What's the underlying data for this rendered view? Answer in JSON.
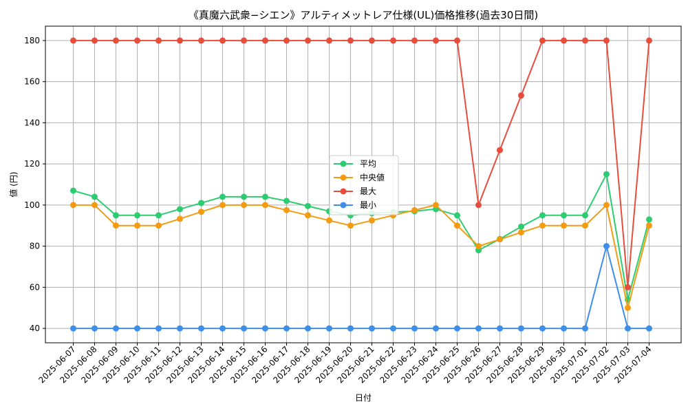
{
  "chart_data": {
    "type": "line",
    "title": "《真魔六武衆−シエン》アルティメットレア仕様(UL)価格推移(過去30日間)",
    "xlabel": "日付",
    "ylabel": "値 (円)",
    "ylim": [
      33,
      187
    ],
    "yticks": [
      40,
      60,
      80,
      100,
      120,
      140,
      160,
      180
    ],
    "grid": true,
    "legend_position": "center",
    "categories": [
      "2025-06-07",
      "2025-06-08",
      "2025-06-09",
      "2025-06-10",
      "2025-06-11",
      "2025-06-12",
      "2025-06-13",
      "2025-06-14",
      "2025-06-15",
      "2025-06-16",
      "2025-06-17",
      "2025-06-18",
      "2025-06-19",
      "2025-06-20",
      "2025-06-21",
      "2025-06-22",
      "2025-06-23",
      "2025-06-24",
      "2025-06-25",
      "2025-06-26",
      "2025-06-27",
      "2025-06-28",
      "2025-06-29",
      "2025-06-30",
      "2025-07-01",
      "2025-07-02",
      "2025-07-03",
      "2025-07-04"
    ],
    "series": [
      {
        "name": "平均",
        "color": "#2ecc71",
        "values": [
          107,
          104,
          95,
          95,
          95,
          98,
          101,
          104,
          104,
          104,
          102,
          99.5,
          97,
          95,
          96,
          96.5,
          97,
          98,
          95,
          78,
          83.5,
          89.5,
          95,
          95,
          95,
          115,
          54,
          93
        ]
      },
      {
        "name": "中央値",
        "color": "#f39c12",
        "values": [
          100,
          100,
          90,
          90,
          90,
          93.3,
          96.7,
          100,
          100,
          100,
          97.5,
          95,
          92.5,
          90,
          92.5,
          95,
          97.5,
          100,
          90,
          80,
          83.3,
          86.7,
          90,
          90,
          90,
          100,
          50,
          90
        ]
      },
      {
        "name": "最大",
        "color": "#e74c3c",
        "values": [
          180,
          180,
          180,
          180,
          180,
          180,
          180,
          180,
          180,
          180,
          180,
          180,
          180,
          180,
          180,
          180,
          180,
          180,
          180,
          100,
          126.7,
          153.3,
          180,
          180,
          180,
          180,
          60,
          180
        ]
      },
      {
        "name": "最小",
        "color": "#3b8eea",
        "values": [
          40,
          40,
          40,
          40,
          40,
          40,
          40,
          40,
          40,
          40,
          40,
          40,
          40,
          40,
          40,
          40,
          40,
          40,
          40,
          40,
          40,
          40,
          40,
          40,
          40,
          80,
          40,
          40
        ]
      }
    ]
  }
}
